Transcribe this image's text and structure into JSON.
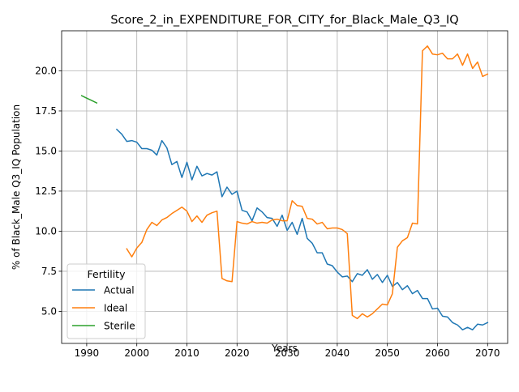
{
  "chart_data": {
    "type": "line",
    "title": "Score_2_in_EXPENDITURE_FOR_CITY_for_Black_Male_Q3_IQ",
    "xlabel": "Years",
    "ylabel": "% of Black_Male Q3_IQ Population",
    "xlim": [
      1985,
      2074
    ],
    "ylim": [
      3.0,
      22.5
    ],
    "xticks": [
      1990,
      2000,
      2010,
      2020,
      2030,
      2040,
      2050,
      2060,
      2070
    ],
    "yticks": [
      5.0,
      7.5,
      10.0,
      12.5,
      15.0,
      17.5,
      20.0
    ],
    "grid": true,
    "legend": {
      "title": "Fertility",
      "placement": "lower-left"
    },
    "series": [
      {
        "name": "Actual",
        "color": "#1f77b4",
        "x": [
          1996,
          1997,
          1998,
          1999,
          2000,
          2001,
          2002,
          2003,
          2004,
          2005,
          2006,
          2007,
          2008,
          2009,
          2010,
          2011,
          2012,
          2013,
          2014,
          2015,
          2016,
          2017,
          2018,
          2019,
          2020,
          2021,
          2022,
          2023,
          2024,
          2025,
          2026,
          2027,
          2028,
          2029,
          2030,
          2031,
          2032,
          2033,
          2034,
          2035,
          2036,
          2037,
          2038,
          2039,
          2040,
          2041,
          2042,
          2043,
          2044,
          2045,
          2046,
          2047,
          2048,
          2049,
          2050,
          2051,
          2052,
          2053,
          2054,
          2055,
          2056,
          2057,
          2058,
          2059,
          2060,
          2061,
          2062,
          2063,
          2064,
          2065,
          2066,
          2067,
          2068,
          2069,
          2070
        ],
        "values": [
          16.35,
          16.05,
          15.6,
          15.65,
          15.55,
          15.15,
          15.15,
          15.05,
          14.75,
          15.65,
          15.2,
          14.15,
          14.35,
          13.35,
          14.3,
          13.2,
          14.05,
          13.45,
          13.6,
          13.5,
          13.7,
          12.15,
          12.75,
          12.3,
          12.5,
          11.3,
          11.2,
          10.65,
          11.45,
          11.2,
          10.85,
          10.8,
          10.3,
          11.0,
          10.05,
          10.55,
          9.8,
          10.8,
          9.55,
          9.25,
          8.65,
          8.65,
          7.95,
          7.85,
          7.45,
          7.15,
          7.2,
          6.85,
          7.35,
          7.25,
          7.6,
          7.0,
          7.3,
          6.8,
          7.25,
          6.55,
          6.8,
          6.35,
          6.6,
          6.1,
          6.3,
          5.8,
          5.8,
          5.15,
          5.2,
          4.7,
          4.65,
          4.3,
          4.15,
          3.85,
          4.0,
          3.85,
          4.2,
          4.15,
          4.3
        ]
      },
      {
        "name": "Ideal",
        "color": "#ff7f0e",
        "x": [
          1998,
          1999,
          2000,
          2001,
          2002,
          2003,
          2004,
          2005,
          2006,
          2007,
          2008,
          2009,
          2010,
          2011,
          2012,
          2013,
          2014,
          2015,
          2016,
          2017,
          2018,
          2019,
          2020,
          2021,
          2022,
          2023,
          2024,
          2025,
          2026,
          2027,
          2028,
          2029,
          2030,
          2031,
          2032,
          2033,
          2034,
          2035,
          2036,
          2037,
          2038,
          2039,
          2040,
          2041,
          2042,
          2043,
          2044,
          2045,
          2046,
          2047,
          2048,
          2049,
          2050,
          2051,
          2052,
          2053,
          2054,
          2055,
          2056,
          2057,
          2058,
          2059,
          2060,
          2061,
          2062,
          2063,
          2064,
          2065,
          2066,
          2067,
          2068,
          2069,
          2070
        ],
        "values": [
          8.9,
          8.4,
          8.95,
          9.3,
          10.1,
          10.55,
          10.35,
          10.7,
          10.85,
          11.1,
          11.3,
          11.5,
          11.25,
          10.6,
          10.95,
          10.55,
          11.0,
          11.15,
          11.25,
          7.05,
          6.9,
          6.85,
          10.6,
          10.5,
          10.45,
          10.6,
          10.5,
          10.55,
          10.5,
          10.7,
          10.75,
          10.65,
          10.65,
          11.9,
          11.6,
          11.55,
          10.8,
          10.75,
          10.45,
          10.55,
          10.15,
          10.2,
          10.2,
          10.1,
          9.85,
          4.75,
          4.55,
          4.85,
          4.65,
          4.85,
          5.15,
          5.45,
          5.4,
          6.1,
          9.0,
          9.4,
          9.6,
          10.5,
          10.45,
          21.25,
          21.55,
          21.05,
          21.0,
          21.1,
          20.75,
          20.75,
          21.05,
          20.35,
          21.05,
          20.15,
          20.55,
          19.65,
          19.8
        ]
      },
      {
        "name": "Sterile",
        "color": "#2ca02c",
        "x": [
          1989,
          1990,
          1991,
          1992
        ],
        "values": [
          18.45,
          18.3,
          18.15,
          18.0
        ]
      }
    ]
  }
}
